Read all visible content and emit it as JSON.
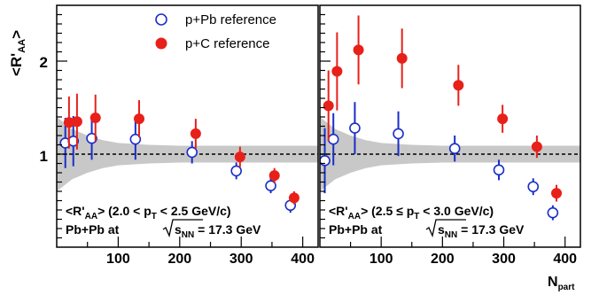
{
  "figure": {
    "y_axis_label_main": "<R'",
    "y_axis_label_sub": "AA",
    "y_axis_label_tail": ">",
    "x_axis_label_main": "N",
    "x_axis_label_sub": "part",
    "colors": {
      "pPb": "#1a2ec8",
      "pC": "#e8201a",
      "band": "#c8c8c8",
      "axis": "#000000"
    }
  },
  "chart_data": [
    {
      "type": "scatter",
      "panel": "left",
      "xlim": [
        0,
        425
      ],
      "ylim": [
        0,
        2.6
      ],
      "x_ticks": [
        100,
        200,
        300,
        400
      ],
      "y_ticks": [
        1,
        2
      ],
      "grid": false,
      "reference_line": 1,
      "legend_position": "top-right",
      "legend": [
        {
          "name": "p+Pb reference",
          "marker": "open-circle",
          "color": "#1a2ec8"
        },
        {
          "name": "p+C reference",
          "marker": "filled-circle",
          "color": "#e8201a"
        }
      ],
      "annotation_line1": {
        "main": "<R'",
        "sub1": "AA",
        "mid": ">  (2.0 < p",
        "sub2": "T",
        "tail": " < 2.5 GeV/c)"
      },
      "annotation_line2": {
        "main": "Pb+Pb at ",
        "sqrt_main": "s",
        "sqrt_sub": "NN",
        "tail": " = 17.3 GeV"
      },
      "series": [
        {
          "name": "p+Pb reference",
          "x": [
            14,
            27,
            57,
            128,
            220,
            292,
            348,
            380
          ],
          "y": [
            1.12,
            1.14,
            1.17,
            1.16,
            1.02,
            0.82,
            0.66,
            0.45
          ],
          "err_up": [
            0.27,
            0.27,
            0.23,
            0.22,
            0.12,
            0.09,
            0.08,
            0.08
          ],
          "err_down": [
            0.27,
            0.27,
            0.23,
            0.22,
            0.12,
            0.09,
            0.08,
            0.08
          ]
        },
        {
          "name": "p+C reference",
          "x": [
            20,
            33,
            63,
            134,
            226,
            298,
            354,
            386
          ],
          "y": [
            1.34,
            1.35,
            1.39,
            1.38,
            1.22,
            0.97,
            0.77,
            0.53
          ],
          "err_up": [
            0.28,
            0.3,
            0.25,
            0.2,
            0.16,
            0.11,
            0.08,
            0.07
          ],
          "err_down": [
            0.28,
            0.3,
            0.25,
            0.2,
            0.16,
            0.11,
            0.08,
            0.07
          ]
        }
      ],
      "band": {
        "x": [
          0,
          25,
          50,
          75,
          100,
          150,
          200,
          250,
          300,
          350,
          425
        ],
        "half_width": [
          0.4,
          0.27,
          0.2,
          0.15,
          0.12,
          0.1,
          0.09,
          0.09,
          0.09,
          0.09,
          0.09
        ]
      }
    },
    {
      "type": "scatter",
      "panel": "right",
      "xlim": [
        0,
        425
      ],
      "ylim": [
        0,
        2.6
      ],
      "x_ticks": [
        100,
        200,
        300,
        400
      ],
      "y_ticks": [
        1,
        2
      ],
      "grid": false,
      "reference_line": 1,
      "annotation_line1": {
        "main": "<R'",
        "sub1": "AA",
        "mid": ">  (2.5 ≤ p",
        "sub2": "T",
        "tail": " < 3.0 GeV/c)"
      },
      "annotation_line2": {
        "main": "Pb+Pb at ",
        "sqrt_main": "s",
        "sqrt_sub": "NN",
        "tail": " = 17.3 GeV"
      },
      "series": [
        {
          "name": "p+Pb reference",
          "x": [
            8,
            22,
            57,
            128,
            220,
            292,
            348,
            380
          ],
          "y": [
            0.93,
            1.16,
            1.28,
            1.22,
            1.06,
            0.83,
            0.65,
            0.37
          ],
          "err_up": [
            0.35,
            0.28,
            0.28,
            0.24,
            0.14,
            0.11,
            0.09,
            0.08
          ],
          "err_down": [
            0.35,
            0.28,
            0.28,
            0.24,
            0.14,
            0.11,
            0.09,
            0.08
          ]
        },
        {
          "name": "p+C reference",
          "x": [
            14,
            28,
            63,
            134,
            226,
            298,
            354,
            386
          ],
          "y": [
            1.52,
            1.89,
            2.12,
            2.03,
            1.74,
            1.38,
            1.08,
            0.58
          ],
          "err_up": [
            0.38,
            0.42,
            0.37,
            0.32,
            0.22,
            0.15,
            0.12,
            0.09
          ],
          "err_down": [
            0.38,
            0.42,
            0.37,
            0.32,
            0.22,
            0.15,
            0.12,
            0.09
          ]
        }
      ],
      "band": {
        "x": [
          0,
          25,
          50,
          75,
          100,
          150,
          200,
          250,
          300,
          350,
          425
        ],
        "half_width": [
          0.4,
          0.27,
          0.2,
          0.15,
          0.12,
          0.1,
          0.09,
          0.09,
          0.09,
          0.09,
          0.09
        ]
      }
    }
  ]
}
